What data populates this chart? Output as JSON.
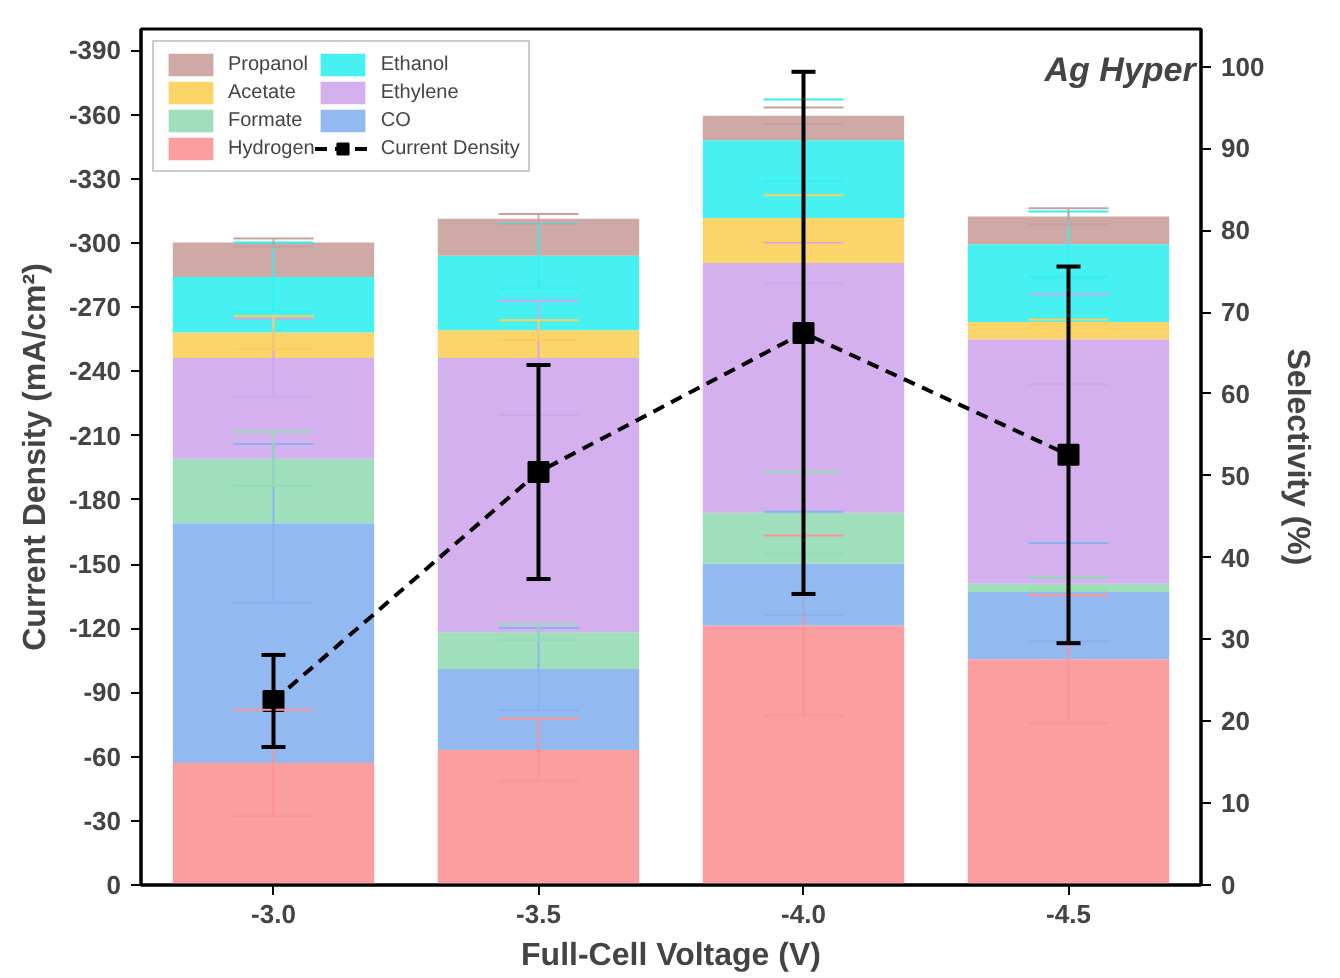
{
  "chart_data": {
    "type": "bar",
    "stacked": true,
    "xlabel": "Full-Cell Voltage (V)",
    "ylabel": "Current Density (mA/cm²)",
    "y2label": "Selectivity (%)",
    "categories": [
      "-3.0",
      "-3.5",
      "-4.0",
      "-4.5"
    ],
    "ylim": [
      0,
      -400
    ],
    "yticks": [
      0,
      -30,
      -60,
      -90,
      -120,
      -150,
      -180,
      -210,
      -240,
      -270,
      -300,
      -330,
      -360,
      -390
    ],
    "y2lim": [
      0,
      104.6
    ],
    "y2ticks": [
      0,
      10,
      20,
      30,
      40,
      50,
      60,
      70,
      80,
      90,
      100
    ],
    "legend": "top left",
    "grid": false,
    "annotations": [
      "Ag Hyper"
    ],
    "series": [
      {
        "name": "Hydrogen",
        "color": "#fb9495",
        "axis": "y2",
        "values": [
          14.9,
          16.5,
          31.7,
          27.6
        ],
        "errors": [
          6.5,
          3.8,
          11,
          7.8
        ]
      },
      {
        "name": "CO",
        "color": "#86b2f0",
        "axis": "y2",
        "values": [
          29.3,
          9.9,
          7.6,
          8.2
        ],
        "errors": [
          9.7,
          5,
          6.3,
          6
        ]
      },
      {
        "name": "Formate",
        "color": "#95dbb5",
        "axis": "y2",
        "values": [
          7.9,
          4.5,
          6.2,
          1.0
        ],
        "errors": [
          3.3,
          1,
          5,
          0.8
        ]
      },
      {
        "name": "Ethylene",
        "color": "#cfa7ec",
        "axis": "y2",
        "values": [
          12.3,
          33.5,
          30.5,
          29.9
        ],
        "errors": [
          4.8,
          7,
          2.5,
          5.5
        ]
      },
      {
        "name": "Acetate",
        "color": "#fcd05a",
        "axis": "y2",
        "values": [
          3.1,
          3.4,
          5.5,
          2.1
        ],
        "errors": [
          2,
          1.2,
          2.8,
          0.3
        ]
      },
      {
        "name": "Ethanol",
        "color": "#33f0f0",
        "axis": "y2",
        "values": [
          6.8,
          9.1,
          9.5,
          9.5
        ],
        "errors": [
          4.2,
          4,
          5,
          4
        ]
      },
      {
        "name": "Propanol",
        "color": "#c9a09c",
        "axis": "y2",
        "values": [
          4.2,
          4.5,
          3,
          3.4
        ],
        "errors": [
          0.5,
          0.6,
          1,
          1
        ]
      },
      {
        "name": "Current Density",
        "type": "line",
        "color": "#000000",
        "axis": "y",
        "marker": "square",
        "line_style": "dashed",
        "values": [
          -86,
          -193,
          -258,
          -201
        ],
        "errors": [
          21.5,
          50,
          122,
          88
        ]
      }
    ]
  }
}
